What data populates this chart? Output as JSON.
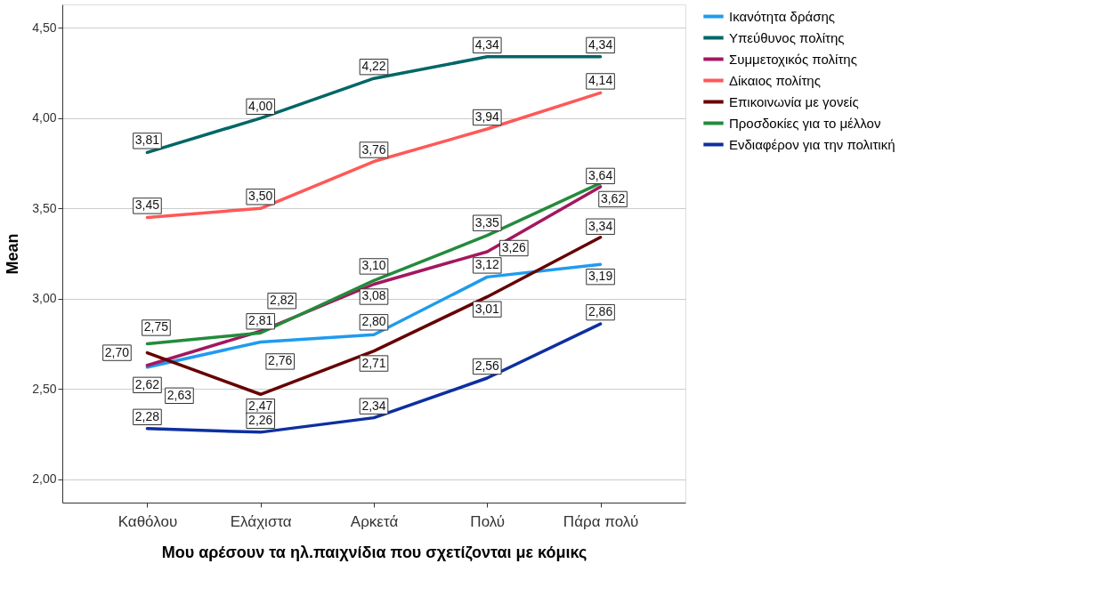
{
  "chart_data": {
    "type": "line",
    "xlabel": "Μου αρέσουν τα ηλ.παιχνίδια που σχετίζονται με κόμικς",
    "ylabel": "Mean",
    "categories": [
      "Καθόλου",
      "Ελάχιστα",
      "Αρκετά",
      "Πολύ",
      "Πάρα πολύ"
    ],
    "series": [
      {
        "name": "Ικανότητα δράσης",
        "color": "#1f9bee",
        "values": [
          2.62,
          2.76,
          2.8,
          3.12,
          3.19
        ],
        "value_labels": [
          "2,62",
          "2,76",
          "2,80",
          "3,12",
          "3,19"
        ]
      },
      {
        "name": "Υπεύθυνος πολίτης",
        "color": "#006666",
        "values": [
          3.81,
          4.0,
          4.22,
          4.34,
          4.34
        ],
        "value_labels": [
          "3,81",
          "4,00",
          "4,22",
          "4,34",
          "4,34"
        ]
      },
      {
        "name": "Συμμετοχικός πολίτης",
        "color": "#a3175f",
        "values": [
          2.63,
          2.82,
          3.08,
          3.26,
          3.62
        ],
        "value_labels": [
          "2,63",
          "2,82",
          "3,08",
          "3,26",
          "3,62"
        ]
      },
      {
        "name": "Δίκαιος πολίτης",
        "color": "#ff5858",
        "values": [
          3.45,
          3.5,
          3.76,
          3.94,
          4.14
        ],
        "value_labels": [
          "3,45",
          "3,50",
          "3,76",
          "3,94",
          "4,14"
        ]
      },
      {
        "name": "Επικοινωνία με γονείς",
        "color": "#660000",
        "values": [
          2.7,
          2.47,
          2.71,
          3.01,
          3.34
        ],
        "value_labels": [
          "2,70",
          "2,47",
          "2,71",
          "3,01",
          "3,34"
        ]
      },
      {
        "name": "Προσδοκίες για το μέλλον",
        "color": "#238b3c",
        "values": [
          2.75,
          2.81,
          3.1,
          3.35,
          3.64
        ],
        "value_labels": [
          "2,75",
          "2,81",
          "3,10",
          "3,35",
          "3,64"
        ]
      },
      {
        "name": "Ενδιαφέρον για την πολιτική",
        "color": "#0d2fa0",
        "values": [
          2.28,
          2.26,
          2.34,
          2.56,
          2.86
        ],
        "value_labels": [
          "2,28",
          "2,26",
          "2,34",
          "2,56",
          "2,86"
        ]
      }
    ],
    "ylim": [
      1.87,
      4.63
    ],
    "yticks": [
      {
        "value": 2.0,
        "label": "2,00"
      },
      {
        "value": 2.5,
        "label": "2,50"
      },
      {
        "value": 3.0,
        "label": "3,00"
      },
      {
        "value": 3.5,
        "label": "3,50"
      },
      {
        "value": 4.0,
        "label": "4,00"
      },
      {
        "value": 4.5,
        "label": "4,50"
      }
    ],
    "grid": "y",
    "legend": "top right",
    "data_labels": true,
    "marker": "none",
    "line_style": "solid"
  }
}
